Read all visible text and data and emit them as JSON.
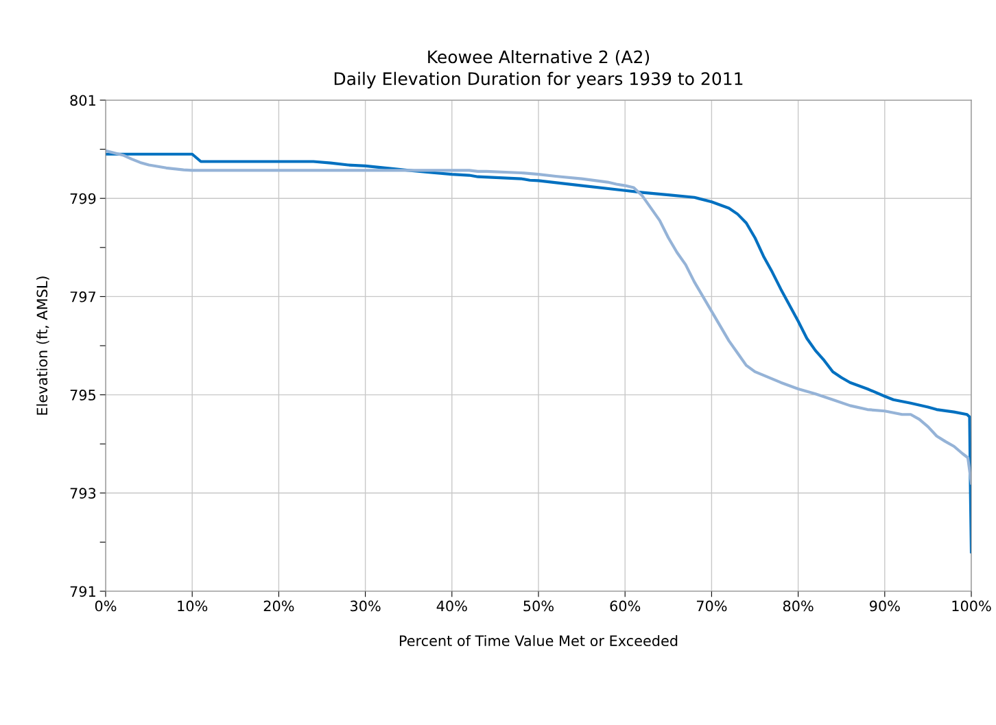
{
  "chart_data": {
    "type": "line",
    "title": "Keowee Alternative 2 (A2)",
    "subtitle": "Daily Elevation Duration for years 1939 to 2011",
    "xlabel": "Percent of Time Value Met or Exceeded",
    "ylabel": "Elevation (ft, AMSL)",
    "xlim": [
      0,
      100
    ],
    "xticks": [
      {
        "value": 0,
        "label": "0%"
      },
      {
        "value": 10,
        "label": "10%"
      },
      {
        "value": 20,
        "label": "20%"
      },
      {
        "value": 30,
        "label": "30%"
      },
      {
        "value": 40,
        "label": "40%"
      },
      {
        "value": 50,
        "label": "50%"
      },
      {
        "value": 60,
        "label": "60%"
      },
      {
        "value": 70,
        "label": "70%"
      },
      {
        "value": 80,
        "label": "80%"
      },
      {
        "value": 90,
        "label": "90%"
      },
      {
        "value": 100,
        "label": "100%"
      }
    ],
    "ylim": [
      791,
      801
    ],
    "yticks": [
      791,
      {
        "value": 792,
        "label": null
      },
      793,
      {
        "value": 794,
        "label": null
      },
      795,
      {
        "value": 796,
        "label": null
      },
      797,
      {
        "value": 798,
        "label": null
      },
      799,
      {
        "value": 800,
        "label": null
      },
      801
    ],
    "grid": true,
    "marker": "none",
    "line_style": "solid",
    "series": [
      {
        "color": "#0070c0",
        "x": [
          0,
          10,
          11,
          24,
          26,
          28,
          30,
          35,
          38,
          40,
          42,
          43,
          48,
          49,
          50,
          55,
          60,
          62,
          65,
          68,
          70,
          72,
          73,
          74,
          75,
          76,
          77,
          78,
          80,
          81,
          82,
          83,
          84,
          85,
          86,
          88,
          90,
          91,
          93,
          95,
          96,
          98,
          99.5,
          99.8,
          99.9,
          100
        ],
        "values": [
          799.9,
          799.9,
          799.75,
          799.75,
          799.72,
          799.68,
          799.66,
          799.57,
          799.52,
          799.49,
          799.47,
          799.44,
          799.4,
          799.37,
          799.36,
          799.26,
          799.16,
          799.12,
          799.07,
          799.02,
          798.93,
          798.8,
          798.68,
          798.5,
          798.2,
          797.82,
          797.5,
          797.15,
          796.5,
          796.15,
          795.9,
          795.7,
          795.47,
          795.35,
          795.25,
          795.12,
          794.97,
          794.9,
          794.83,
          794.75,
          794.7,
          794.65,
          794.6,
          794.55,
          793.0,
          791.8
        ]
      },
      {
        "color": "#95b3d7",
        "x": [
          0,
          2,
          3,
          4,
          5,
          7,
          9,
          10,
          42,
          43,
          44,
          48,
          50,
          52,
          55,
          58,
          59,
          60,
          61,
          62,
          64,
          65,
          66,
          67,
          68,
          70,
          72,
          73,
          74,
          75,
          78,
          80,
          82,
          84,
          86,
          88,
          90,
          92,
          93,
          94,
          95,
          96,
          97,
          98,
          99,
          99.6,
          100
        ],
        "values": [
          799.97,
          799.88,
          799.8,
          799.73,
          799.68,
          799.62,
          799.58,
          799.57,
          799.57,
          799.55,
          799.55,
          799.52,
          799.49,
          799.45,
          799.4,
          799.33,
          799.29,
          799.26,
          799.22,
          799.05,
          798.55,
          798.2,
          797.9,
          797.65,
          797.3,
          796.7,
          796.1,
          795.85,
          795.6,
          795.47,
          795.25,
          795.12,
          795.02,
          794.9,
          794.78,
          794.7,
          794.67,
          794.6,
          794.6,
          794.5,
          794.35,
          794.16,
          794.05,
          793.95,
          793.8,
          793.72,
          793.2
        ]
      }
    ]
  }
}
